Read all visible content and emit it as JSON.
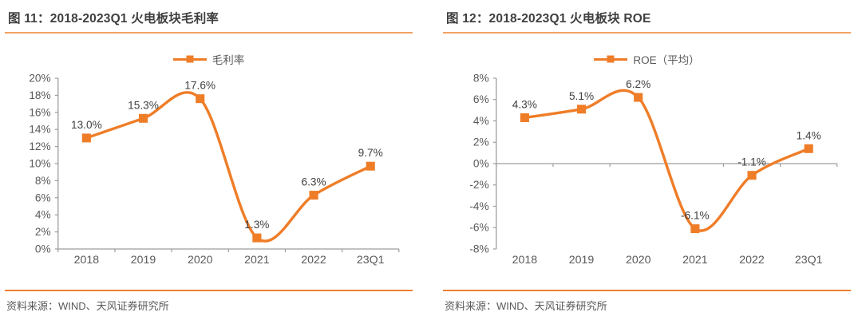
{
  "colors": {
    "accent": "#EF7D28",
    "axis": "#9E9E9E",
    "axis_text": "#595959",
    "label_text": "#404040",
    "title_text": "#3F3F3F",
    "rule_top": "#F2A263",
    "rule_bottom": "#EC8133"
  },
  "chart_data": [
    {
      "type": "line",
      "title": "图 11：2018-2023Q1 火电板块毛利率",
      "legend": "毛利率",
      "categories": [
        "2018",
        "2019",
        "2020",
        "2021",
        "2022",
        "23Q1"
      ],
      "values": [
        13.0,
        15.3,
        17.6,
        1.3,
        6.3,
        9.7
      ],
      "point_labels": [
        "13.0%",
        "15.3%",
        "17.6%",
        "1.3%",
        "6.3%",
        "9.7%"
      ],
      "ylim": [
        0,
        20
      ],
      "ystep": 2,
      "y_ticks": [
        "0%",
        "2%",
        "4%",
        "6%",
        "8%",
        "10%",
        "12%",
        "14%",
        "16%",
        "18%",
        "20%"
      ],
      "grid": false,
      "legend_position": "top",
      "xlabel": "",
      "ylabel": "",
      "source": "资料来源：WIND、天风证券研究所"
    },
    {
      "type": "line",
      "title": "图 12：2018-2023Q1 火电板块 ROE",
      "legend": "ROE（平均）",
      "categories": [
        "2018",
        "2019",
        "2020",
        "2021",
        "2022",
        "23Q1"
      ],
      "values": [
        4.3,
        5.1,
        6.2,
        -6.1,
        -1.1,
        1.4
      ],
      "point_labels": [
        "4.3%",
        "5.1%",
        "6.2%",
        "-6.1%",
        "-1.1%",
        "1.4%"
      ],
      "ylim": [
        -8,
        8
      ],
      "ystep": 2,
      "y_ticks": [
        "-8%",
        "-6%",
        "-4%",
        "-2%",
        "0%",
        "2%",
        "4%",
        "6%",
        "8%"
      ],
      "grid": false,
      "legend_position": "top",
      "xlabel": "",
      "ylabel": "",
      "source": "资料来源：WIND、天风证券研究所"
    }
  ]
}
